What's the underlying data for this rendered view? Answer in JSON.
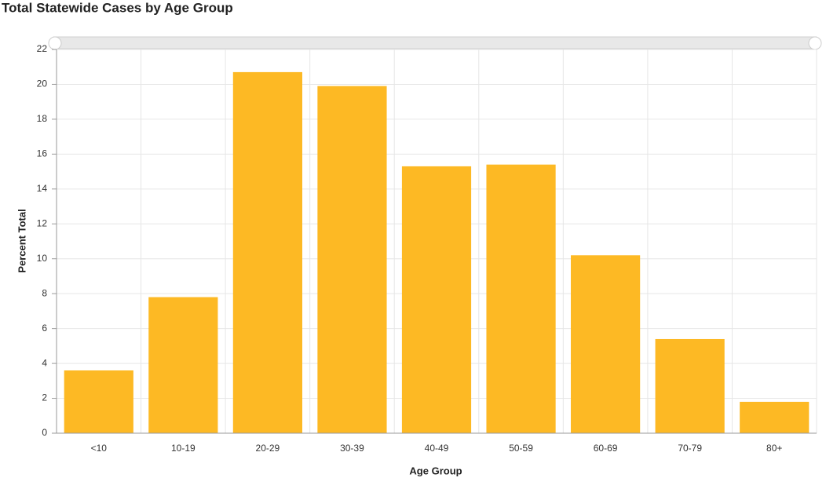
{
  "chart_data": {
    "type": "bar",
    "title": "Total Statewide Cases by Age Group",
    "x_label": "Age Group",
    "y_label": "Percent Total",
    "categories": [
      "<10",
      "10-19",
      "20-29",
      "30-39",
      "40-49",
      "50-59",
      "60-69",
      "70-79",
      "80+"
    ],
    "values": [
      3.6,
      7.8,
      20.7,
      19.9,
      15.3,
      15.4,
      10.2,
      5.4,
      1.8
    ],
    "color": "#fdb924",
    "ylim": [
      0,
      22
    ],
    "yticks": [
      0,
      2,
      4,
      6,
      8,
      10,
      12,
      14,
      16,
      18,
      20,
      22
    ],
    "grid": true
  }
}
